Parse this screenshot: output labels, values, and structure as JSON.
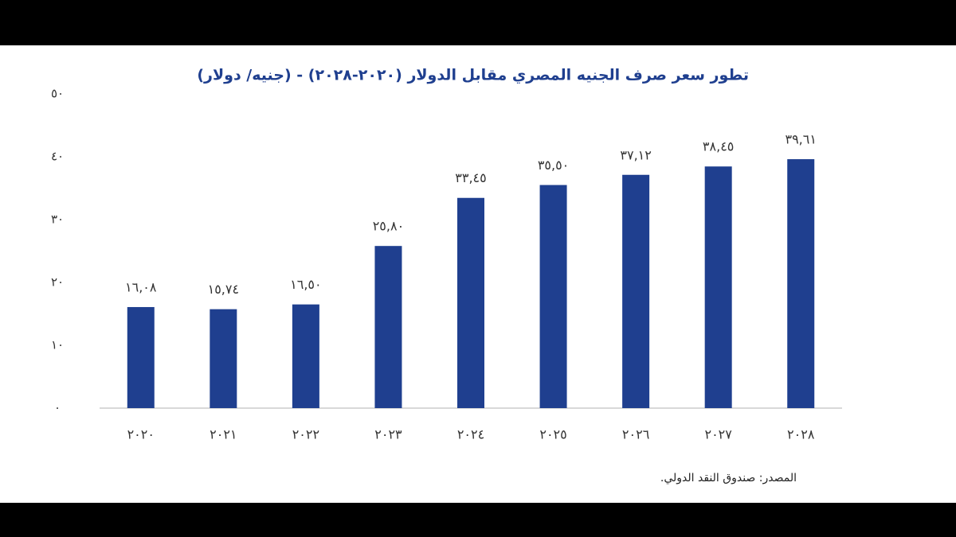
{
  "chart_data": {
    "type": "bar",
    "title": "تطور سعر صرف الجنيه المصري مقابل الدولار (٢٠٢٠-٢٠٢٨) - (جنيه/ دولار)",
    "categories": [
      "٢٠٢٠",
      "٢٠٢١",
      "٢٠٢٢",
      "٢٠٢٣",
      "٢٠٢٤",
      "٢٠٢٥",
      "٢٠٢٦",
      "٢٠٢٧",
      "٢٠٢٨"
    ],
    "values": [
      16.08,
      15.74,
      16.5,
      25.8,
      33.45,
      35.5,
      37.12,
      38.45,
      39.61
    ],
    "value_labels": [
      "١٦,٠٨",
      "١٥,٧٤",
      "١٦,٥٠",
      "٢٥,٨٠",
      "٣٣,٤٥",
      "٣٥,٥٠",
      "٣٧,١٢",
      "٣٨,٤٥",
      "٣٩,٦١"
    ],
    "color": "#1f3f8f",
    "ylim": [
      0,
      50
    ],
    "yticks": [
      {
        "value": 0,
        "label": "٠"
      },
      {
        "value": 10,
        "label": "١٠"
      },
      {
        "value": 20,
        "label": "٢٠"
      },
      {
        "value": 30,
        "label": "٣٠"
      },
      {
        "value": 40,
        "label": "٤٠"
      },
      {
        "value": 50,
        "label": "٥٠"
      }
    ],
    "grid": false,
    "source": "المصدر: صندوق النقد الدولي."
  }
}
